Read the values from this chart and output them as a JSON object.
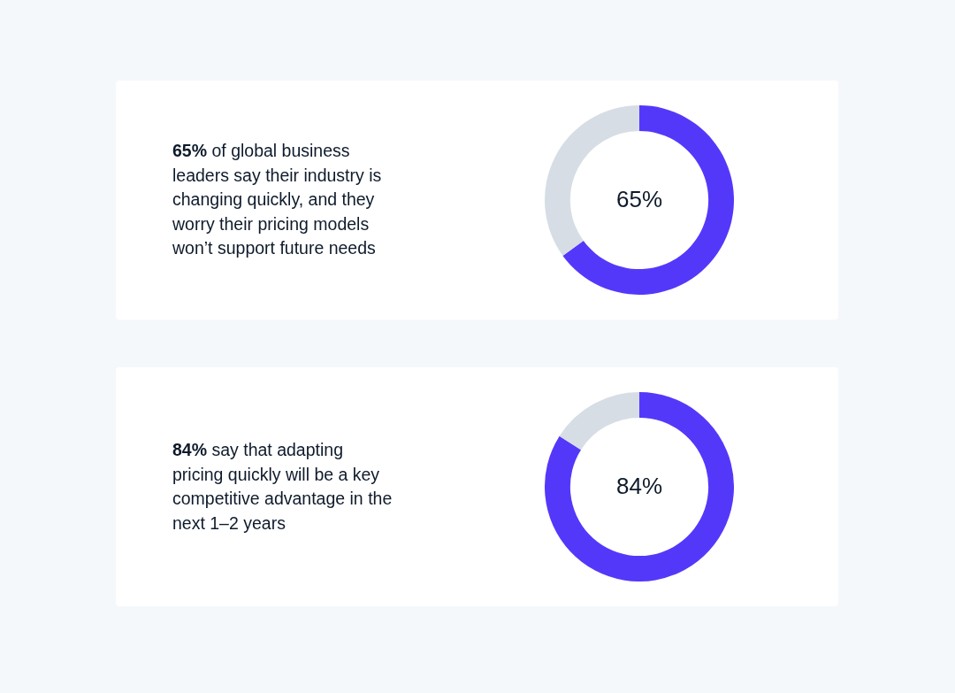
{
  "chart_data": [
    {
      "type": "donut",
      "title": "65% of global business leaders say their industry is changing quickly, and they worry their pricing models won’t support future needs",
      "categories": [
        null,
        null
      ],
      "values": [
        65,
        35
      ],
      "colors": [
        "#5438fa",
        "#d6dde5"
      ],
      "value_labels": [
        "65%",
        null
      ]
    },
    {
      "type": "donut",
      "title": "84% say that adapting pricing quickly will be a key competitive advantage in the next 1–2 years",
      "categories": [
        null,
        null
      ],
      "values": [
        84,
        16
      ],
      "colors": [
        "#5438fa",
        "#d6dde5"
      ],
      "value_labels": [
        "84%",
        null
      ]
    }
  ]
}
